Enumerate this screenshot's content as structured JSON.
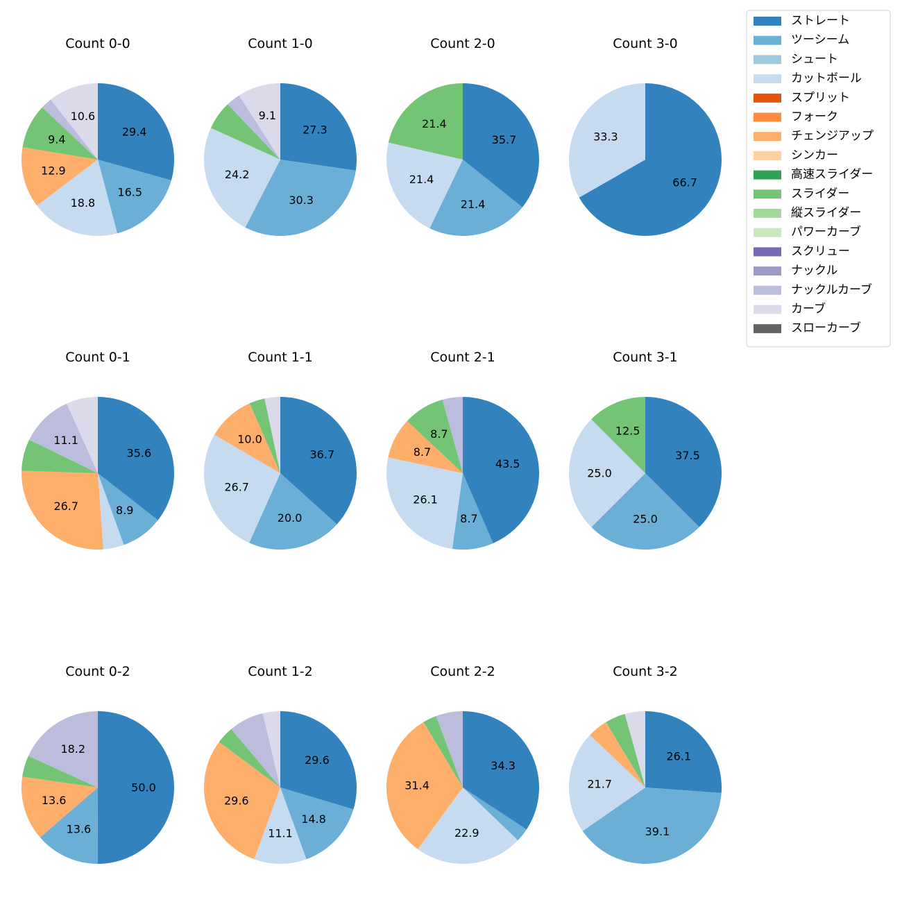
{
  "chart_data": {
    "type": "pie",
    "legend": {
      "placement": "top-right",
      "entries": [
        {
          "name": "ストレート",
          "color": "#3182bd"
        },
        {
          "name": "ツーシーム",
          "color": "#6baed6"
        },
        {
          "name": "シュート",
          "color": "#9ecae1"
        },
        {
          "name": "カットボール",
          "color": "#c6dbef"
        },
        {
          "name": "スプリット",
          "color": "#e6550d"
        },
        {
          "name": "フォーク",
          "color": "#fd8d3c"
        },
        {
          "name": "チェンジアップ",
          "color": "#fdae6b"
        },
        {
          "name": "シンカー",
          "color": "#fdd0a2"
        },
        {
          "name": "高速スライダー",
          "color": "#31a354"
        },
        {
          "name": "スライダー",
          "color": "#74c476"
        },
        {
          "name": "縦スライダー",
          "color": "#a1d99b"
        },
        {
          "name": "パワーカーブ",
          "color": "#c7e9c0"
        },
        {
          "name": "スクリュー",
          "color": "#756bb1"
        },
        {
          "name": "ナックル",
          "color": "#9e9ac8"
        },
        {
          "name": "ナックルカーブ",
          "color": "#bcbddc"
        },
        {
          "name": "カーブ",
          "color": "#dadaeb"
        },
        {
          "name": "スローカーブ",
          "color": "#636363"
        }
      ]
    },
    "pies": [
      {
        "title": "Count 0-0",
        "slices": [
          {
            "pitch": "ストレート",
            "value": 29.4,
            "label": "29.4"
          },
          {
            "pitch": "ツーシーム",
            "value": 16.5,
            "label": "16.5"
          },
          {
            "pitch": "カットボール",
            "value": 18.8,
            "label": "18.8"
          },
          {
            "pitch": "チェンジアップ",
            "value": 12.9,
            "label": "12.9"
          },
          {
            "pitch": "スライダー",
            "value": 9.4,
            "label": "9.4"
          },
          {
            "pitch": "ナックルカーブ",
            "value": 2.4,
            "label": ""
          },
          {
            "pitch": "カーブ",
            "value": 10.6,
            "label": "10.6"
          }
        ]
      },
      {
        "title": "Count 1-0",
        "slices": [
          {
            "pitch": "ストレート",
            "value": 27.3,
            "label": "27.3"
          },
          {
            "pitch": "ツーシーム",
            "value": 30.3,
            "label": "30.3"
          },
          {
            "pitch": "カットボール",
            "value": 24.2,
            "label": "24.2"
          },
          {
            "pitch": "スライダー",
            "value": 6.1,
            "label": ""
          },
          {
            "pitch": "ナックルカーブ",
            "value": 3.0,
            "label": ""
          },
          {
            "pitch": "カーブ",
            "value": 9.1,
            "label": "9.1"
          }
        ]
      },
      {
        "title": "Count 2-0",
        "slices": [
          {
            "pitch": "ストレート",
            "value": 35.7,
            "label": "35.7"
          },
          {
            "pitch": "ツーシーム",
            "value": 21.4,
            "label": "21.4"
          },
          {
            "pitch": "カットボール",
            "value": 21.4,
            "label": "21.4"
          },
          {
            "pitch": "スライダー",
            "value": 21.4,
            "label": "21.4"
          }
        ]
      },
      {
        "title": "Count 3-0",
        "slices": [
          {
            "pitch": "ストレート",
            "value": 66.7,
            "label": "66.7"
          },
          {
            "pitch": "カットボール",
            "value": 33.3,
            "label": "33.3"
          }
        ]
      },
      {
        "title": "Count 0-1",
        "slices": [
          {
            "pitch": "ストレート",
            "value": 35.6,
            "label": "35.6"
          },
          {
            "pitch": "ツーシーム",
            "value": 8.9,
            "label": "8.9"
          },
          {
            "pitch": "カットボール",
            "value": 4.4,
            "label": ""
          },
          {
            "pitch": "チェンジアップ",
            "value": 26.7,
            "label": "26.7"
          },
          {
            "pitch": "スライダー",
            "value": 6.7,
            "label": ""
          },
          {
            "pitch": "ナックルカーブ",
            "value": 11.1,
            "label": "11.1"
          },
          {
            "pitch": "カーブ",
            "value": 6.7,
            "label": ""
          }
        ]
      },
      {
        "title": "Count 1-1",
        "slices": [
          {
            "pitch": "ストレート",
            "value": 36.7,
            "label": "36.7"
          },
          {
            "pitch": "ツーシーム",
            "value": 20.0,
            "label": "20.0"
          },
          {
            "pitch": "カットボール",
            "value": 26.7,
            "label": "26.7"
          },
          {
            "pitch": "チェンジアップ",
            "value": 10.0,
            "label": "10.0"
          },
          {
            "pitch": "スライダー",
            "value": 3.3,
            "label": ""
          },
          {
            "pitch": "カーブ",
            "value": 3.3,
            "label": ""
          }
        ]
      },
      {
        "title": "Count 2-1",
        "slices": [
          {
            "pitch": "ストレート",
            "value": 43.5,
            "label": "43.5"
          },
          {
            "pitch": "ツーシーム",
            "value": 8.7,
            "label": "8.7"
          },
          {
            "pitch": "カットボール",
            "value": 26.1,
            "label": "26.1"
          },
          {
            "pitch": "チェンジアップ",
            "value": 8.7,
            "label": "8.7"
          },
          {
            "pitch": "スライダー",
            "value": 8.7,
            "label": "8.7"
          },
          {
            "pitch": "ナックルカーブ",
            "value": 4.3,
            "label": ""
          }
        ]
      },
      {
        "title": "Count 3-1",
        "slices": [
          {
            "pitch": "ストレート",
            "value": 37.5,
            "label": "37.5"
          },
          {
            "pitch": "ツーシーム",
            "value": 25.0,
            "label": "25.0"
          },
          {
            "pitch": "カットボール",
            "value": 25.0,
            "label": "25.0"
          },
          {
            "pitch": "スライダー",
            "value": 12.5,
            "label": "12.5"
          }
        ]
      },
      {
        "title": "Count 0-2",
        "slices": [
          {
            "pitch": "ストレート",
            "value": 50.0,
            "label": "50.0"
          },
          {
            "pitch": "ツーシーム",
            "value": 13.6,
            "label": "13.6"
          },
          {
            "pitch": "チェンジアップ",
            "value": 13.6,
            "label": "13.6"
          },
          {
            "pitch": "スライダー",
            "value": 4.5,
            "label": ""
          },
          {
            "pitch": "ナックルカーブ",
            "value": 18.2,
            "label": "18.2"
          }
        ]
      },
      {
        "title": "Count 1-2",
        "slices": [
          {
            "pitch": "ストレート",
            "value": 29.6,
            "label": "29.6"
          },
          {
            "pitch": "ツーシーム",
            "value": 14.8,
            "label": "14.8"
          },
          {
            "pitch": "カットボール",
            "value": 11.1,
            "label": "11.1"
          },
          {
            "pitch": "チェンジアップ",
            "value": 29.6,
            "label": "29.6"
          },
          {
            "pitch": "スライダー",
            "value": 3.7,
            "label": ""
          },
          {
            "pitch": "ナックルカーブ",
            "value": 7.4,
            "label": ""
          },
          {
            "pitch": "カーブ",
            "value": 3.7,
            "label": ""
          }
        ]
      },
      {
        "title": "Count 2-2",
        "slices": [
          {
            "pitch": "ストレート",
            "value": 34.3,
            "label": "34.3"
          },
          {
            "pitch": "ツーシーム",
            "value": 2.9,
            "label": ""
          },
          {
            "pitch": "カットボール",
            "value": 22.9,
            "label": "22.9"
          },
          {
            "pitch": "チェンジアップ",
            "value": 31.4,
            "label": "31.4"
          },
          {
            "pitch": "スライダー",
            "value": 2.9,
            "label": ""
          },
          {
            "pitch": "ナックルカーブ",
            "value": 5.7,
            "label": ""
          }
        ]
      },
      {
        "title": "Count 3-2",
        "slices": [
          {
            "pitch": "ストレート",
            "value": 26.1,
            "label": "26.1"
          },
          {
            "pitch": "ツーシーム",
            "value": 39.1,
            "label": "39.1"
          },
          {
            "pitch": "カットボール",
            "value": 21.7,
            "label": "21.7"
          },
          {
            "pitch": "チェンジアップ",
            "value": 4.3,
            "label": ""
          },
          {
            "pitch": "スライダー",
            "value": 4.3,
            "label": ""
          },
          {
            "pitch": "カーブ",
            "value": 4.3,
            "label": ""
          }
        ]
      }
    ]
  }
}
